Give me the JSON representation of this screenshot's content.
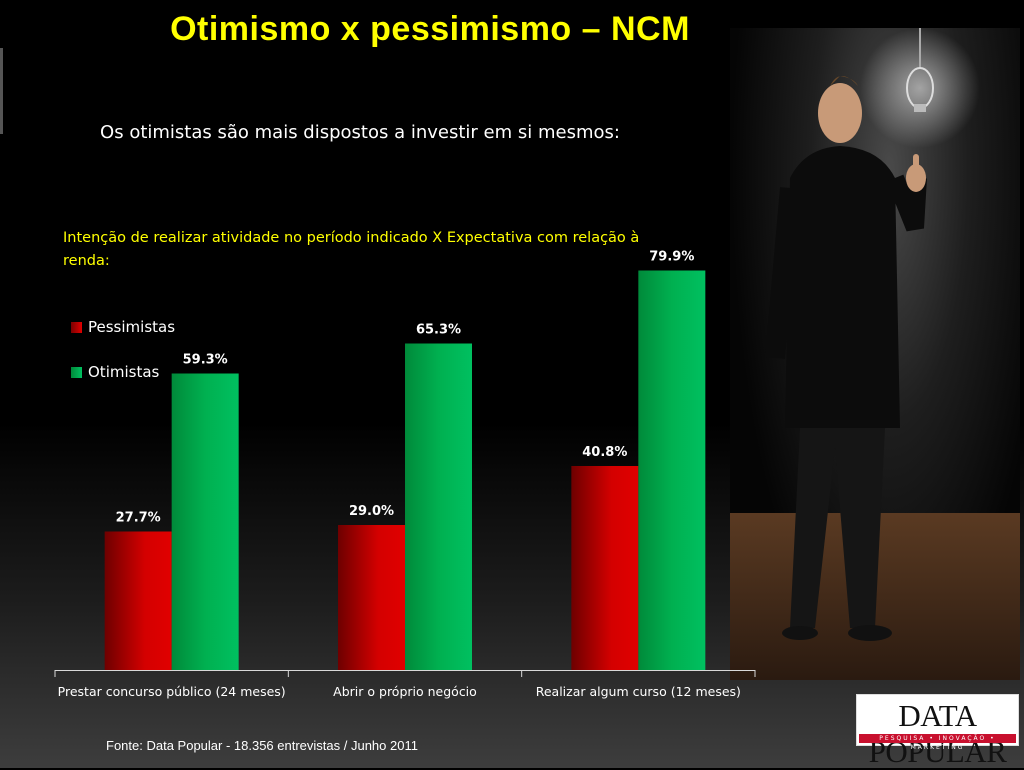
{
  "slide": {
    "title": "Otimismo x pessimismo – NCM",
    "subtitle": "Os otimistas são mais dispostos a investir em si mesmos:",
    "intent_text": "Intenção de  realizar atividade no período indicado X Expectativa com relação à renda:",
    "source": "Fonte: Data Popular  - 18.356 entrevistas / Junho 2011"
  },
  "logo": {
    "text": "DATA POPULAR",
    "tagline": "PESQUISA • INOVAÇÃO • MARKETING"
  },
  "photo": {
    "description_icon": "man-thumbs-up-lightbulb-photo"
  },
  "chart_data": {
    "type": "bar",
    "categories": [
      "Prestar concurso público (24 meses)",
      "Abrir o próprio negócio",
      "Realizar algum curso (12 meses)"
    ],
    "series": [
      {
        "name": "Pessimistas",
        "values": [
          27.7,
          29.0,
          40.8
        ],
        "labels": [
          "27.7%",
          "29.0%",
          "40.8%"
        ],
        "color": "#c00000"
      },
      {
        "name": "Otimistas",
        "values": [
          59.3,
          65.3,
          79.9
        ],
        "labels": [
          "59.3%",
          "65.3%",
          "79.9%"
        ],
        "color": "#00b050"
      }
    ],
    "ylim": [
      0,
      100
    ],
    "grid": false,
    "legend": "top-left",
    "xlabel": "",
    "ylabel": ""
  }
}
